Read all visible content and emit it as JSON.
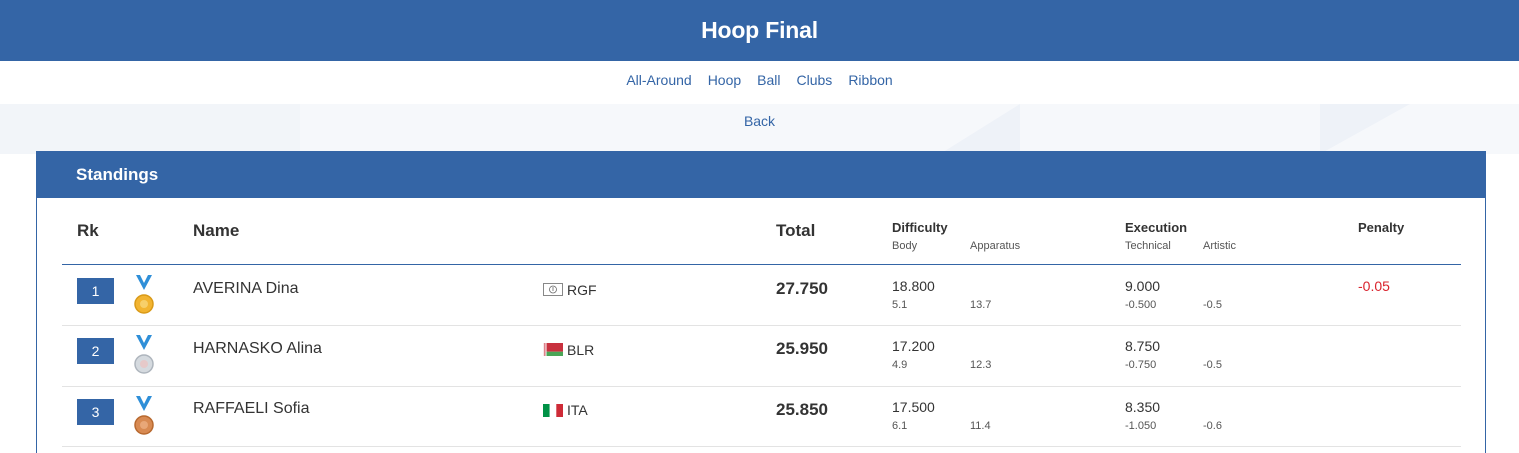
{
  "page_title": "Hoop Final",
  "nav": [
    "All-Around",
    "Hoop",
    "Ball",
    "Clubs",
    "Ribbon"
  ],
  "back_label": "Back",
  "panel_title": "Standings",
  "headers": {
    "rank": "Rk",
    "name": "Name",
    "total": "Total",
    "difficulty": "Difficulty",
    "difficulty_body": "Body",
    "difficulty_apparatus": "Apparatus",
    "execution": "Execution",
    "execution_technical": "Technical",
    "execution_artistic": "Artistic",
    "penalty": "Penalty"
  },
  "rows": [
    {
      "rank": "1",
      "medal": "gold-medal-icon",
      "name": "AVERINA Dina",
      "noc": "RGF",
      "total": "27.750",
      "difficulty": "18.800",
      "body": "5.1",
      "apparatus": "13.7",
      "execution": "9.000",
      "technical": "-0.500",
      "artistic": "-0.5",
      "penalty": "-0.05"
    },
    {
      "rank": "2",
      "medal": "silver-medal-icon",
      "name": "HARNASKO Alina",
      "noc": "BLR",
      "total": "25.950",
      "difficulty": "17.200",
      "body": "4.9",
      "apparatus": "12.3",
      "execution": "8.750",
      "technical": "-0.750",
      "artistic": "-0.5",
      "penalty": ""
    },
    {
      "rank": "3",
      "medal": "bronze-medal-icon",
      "name": "RAFFAELI Sofia",
      "noc": "ITA",
      "total": "25.850",
      "difficulty": "17.500",
      "body": "6.1",
      "apparatus": "11.4",
      "execution": "8.350",
      "technical": "-1.050",
      "artistic": "-0.6",
      "penalty": ""
    }
  ],
  "colors": {
    "brand": "#3465a6",
    "penalty": "#d9232d",
    "gold": "#f2b431",
    "silver": "#c9cfd6",
    "bronze": "#d88a52",
    "ribbon": "#2f8fd8"
  }
}
